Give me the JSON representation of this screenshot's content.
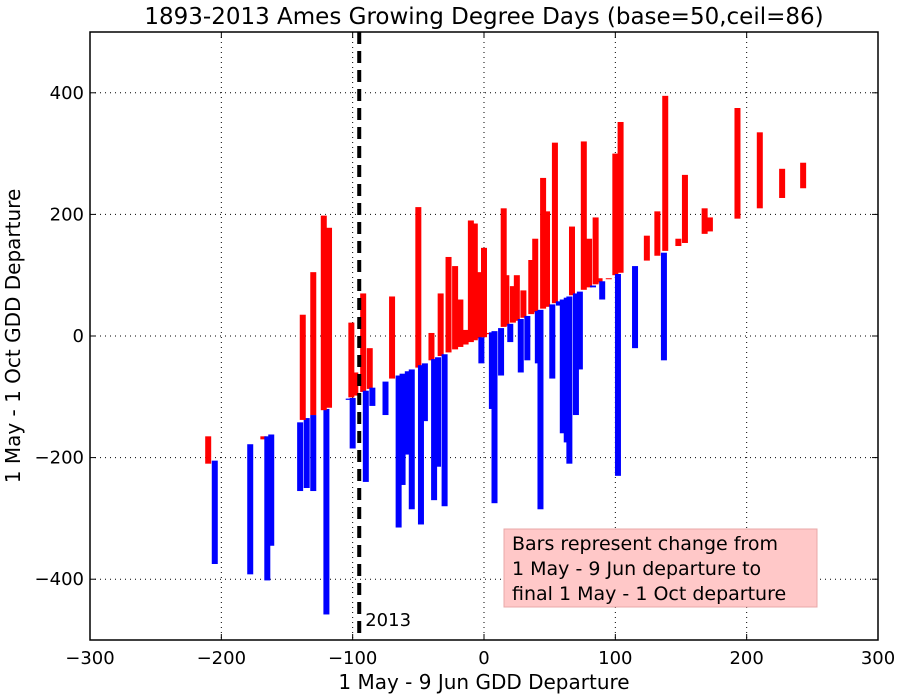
{
  "chart_data": {
    "type": "bar",
    "title": "1893-2013 Ames Growing Degree Days (base=50,ceil=86)",
    "xlabel": "1 May - 9 Jun GDD Departure",
    "ylabel": "1 May - 1 Oct GDD Departure",
    "xlim": [
      -300,
      300
    ],
    "ylim": [
      -500,
      500
    ],
    "xticks": [
      -300,
      -200,
      -100,
      0,
      100,
      200,
      300
    ],
    "yticks": [
      -400,
      -200,
      0,
      200,
      400
    ],
    "grid": true,
    "colors": {
      "increase": "#ff0000",
      "decrease": "#0000ff",
      "marker": "#000000",
      "note_bg": "#ffc8c8"
    },
    "marker": {
      "x": -95,
      "label": "2013"
    },
    "note": {
      "lines": [
        "Bars represent change from",
        "1 May - 9 Jun departure to",
        "final 1 May - 1 Oct departure"
      ]
    },
    "bars": [
      {
        "x": -210,
        "y0": -210,
        "y1": -165
      },
      {
        "x": -205,
        "y0": -205,
        "y1": -375
      },
      {
        "x": -178,
        "y0": -178,
        "y1": -392
      },
      {
        "x": -168,
        "y0": -170,
        "y1": -165
      },
      {
        "x": -165,
        "y0": -165,
        "y1": -402
      },
      {
        "x": -162,
        "y0": -162,
        "y1": -345
      },
      {
        "x": -140,
        "y0": -142,
        "y1": -255
      },
      {
        "x": -135,
        "y0": -135,
        "y1": -250
      },
      {
        "x": -130,
        "y0": -130,
        "y1": -255
      },
      {
        "x": -138,
        "y0": -138,
        "y1": 35
      },
      {
        "x": -130,
        "y0": -130,
        "y1": 105
      },
      {
        "x": -120,
        "y0": -120,
        "y1": -458
      },
      {
        "x": -122,
        "y0": -122,
        "y1": 198
      },
      {
        "x": -118,
        "y0": -118,
        "y1": 178
      },
      {
        "x": -103,
        "y0": -103,
        "y1": -105
      },
      {
        "x": -100,
        "y0": -102,
        "y1": -185
      },
      {
        "x": -101,
        "y0": -101,
        "y1": 22
      },
      {
        "x": -98,
        "y0": -98,
        "y1": -60
      },
      {
        "x": -92,
        "y0": -92,
        "y1": 70
      },
      {
        "x": -90,
        "y0": -90,
        "y1": -240
      },
      {
        "x": -87,
        "y0": -87,
        "y1": -20
      },
      {
        "x": -85,
        "y0": -85,
        "y1": -115
      },
      {
        "x": -75,
        "y0": -75,
        "y1": -130
      },
      {
        "x": -70,
        "y0": -70,
        "y1": 65
      },
      {
        "x": -65,
        "y0": -65,
        "y1": -315
      },
      {
        "x": -62,
        "y0": -62,
        "y1": -245
      },
      {
        "x": -58,
        "y0": -58,
        "y1": -195
      },
      {
        "x": -55,
        "y0": -55,
        "y1": -285
      },
      {
        "x": -50,
        "y0": -52,
        "y1": 212
      },
      {
        "x": -48,
        "y0": -48,
        "y1": -310
      },
      {
        "x": -45,
        "y0": -45,
        "y1": -140
      },
      {
        "x": -40,
        "y0": -40,
        "y1": 5
      },
      {
        "x": -38,
        "y0": -38,
        "y1": -270
      },
      {
        "x": -35,
        "y0": -35,
        "y1": -215
      },
      {
        "x": -33,
        "y0": -33,
        "y1": 70
      },
      {
        "x": -30,
        "y0": -30,
        "y1": -280
      },
      {
        "x": -27,
        "y0": -27,
        "y1": 130
      },
      {
        "x": -22,
        "y0": -22,
        "y1": 115
      },
      {
        "x": -18,
        "y0": -18,
        "y1": 60
      },
      {
        "x": -14,
        "y0": -14,
        "y1": 10
      },
      {
        "x": -10,
        "y0": -10,
        "y1": 190
      },
      {
        "x": -7,
        "y0": -7,
        "y1": 185
      },
      {
        "x": -4,
        "y0": -4,
        "y1": 105
      },
      {
        "x": -2,
        "y0": -2,
        "y1": -45
      },
      {
        "x": 0,
        "y0": -2,
        "y1": 145
      },
      {
        "x": 3,
        "y0": 3,
        "y1": 5
      },
      {
        "x": 6,
        "y0": 6,
        "y1": -120
      },
      {
        "x": 8,
        "y0": 8,
        "y1": -275
      },
      {
        "x": 13,
        "y0": 13,
        "y1": -65
      },
      {
        "x": 15,
        "y0": 15,
        "y1": 210
      },
      {
        "x": 17,
        "y0": 17,
        "y1": 100
      },
      {
        "x": 20,
        "y0": 20,
        "y1": -10
      },
      {
        "x": 22,
        "y0": 22,
        "y1": 82
      },
      {
        "x": 25,
        "y0": 25,
        "y1": 100
      },
      {
        "x": 28,
        "y0": 28,
        "y1": -60
      },
      {
        "x": 30,
        "y0": 30,
        "y1": 75
      },
      {
        "x": 33,
        "y0": 33,
        "y1": -40
      },
      {
        "x": 36,
        "y0": 36,
        "y1": 125
      },
      {
        "x": 39,
        "y0": 39,
        "y1": 160
      },
      {
        "x": 41,
        "y0": 41,
        "y1": -45
      },
      {
        "x": 43,
        "y0": 43,
        "y1": -285
      },
      {
        "x": 45,
        "y0": 45,
        "y1": 260
      },
      {
        "x": 48,
        "y0": 48,
        "y1": 205
      },
      {
        "x": 52,
        "y0": 52,
        "y1": -70
      },
      {
        "x": 54,
        "y0": 54,
        "y1": 318
      },
      {
        "x": 57,
        "y0": 57,
        "y1": 50
      },
      {
        "x": 60,
        "y0": 60,
        "y1": -160
      },
      {
        "x": 63,
        "y0": 63,
        "y1": -175
      },
      {
        "x": 65,
        "y0": 65,
        "y1": -210
      },
      {
        "x": 67,
        "y0": 67,
        "y1": 180
      },
      {
        "x": 70,
        "y0": 70,
        "y1": -130
      },
      {
        "x": 73,
        "y0": 73,
        "y1": -55
      },
      {
        "x": 76,
        "y0": 76,
        "y1": 320
      },
      {
        "x": 80,
        "y0": 80,
        "y1": 160
      },
      {
        "x": 83,
        "y0": 83,
        "y1": 80
      },
      {
        "x": 85,
        "y0": 85,
        "y1": 195
      },
      {
        "x": 88,
        "y0": 88,
        "y1": 95
      },
      {
        "x": 90,
        "y0": 90,
        "y1": 60
      },
      {
        "x": 95,
        "y0": 95,
        "y1": 95
      },
      {
        "x": 100,
        "y0": 100,
        "y1": 300
      },
      {
        "x": 102,
        "y0": 102,
        "y1": -230
      },
      {
        "x": 104,
        "y0": 104,
        "y1": 352
      },
      {
        "x": 115,
        "y0": 115,
        "y1": -20
      },
      {
        "x": 124,
        "y0": 124,
        "y1": 165
      },
      {
        "x": 132,
        "y0": 132,
        "y1": 205
      },
      {
        "x": 137,
        "y0": 137,
        "y1": -40
      },
      {
        "x": 138,
        "y0": 140,
        "y1": 395
      },
      {
        "x": 148,
        "y0": 148,
        "y1": 160
      },
      {
        "x": 153,
        "y0": 153,
        "y1": 265
      },
      {
        "x": 168,
        "y0": 168,
        "y1": 210
      },
      {
        "x": 172,
        "y0": 172,
        "y1": 195
      },
      {
        "x": 193,
        "y0": 193,
        "y1": 375
      },
      {
        "x": 210,
        "y0": 210,
        "y1": 335
      },
      {
        "x": 227,
        "y0": 227,
        "y1": 275
      },
      {
        "x": 243,
        "y0": 243,
        "y1": 285
      }
    ]
  }
}
